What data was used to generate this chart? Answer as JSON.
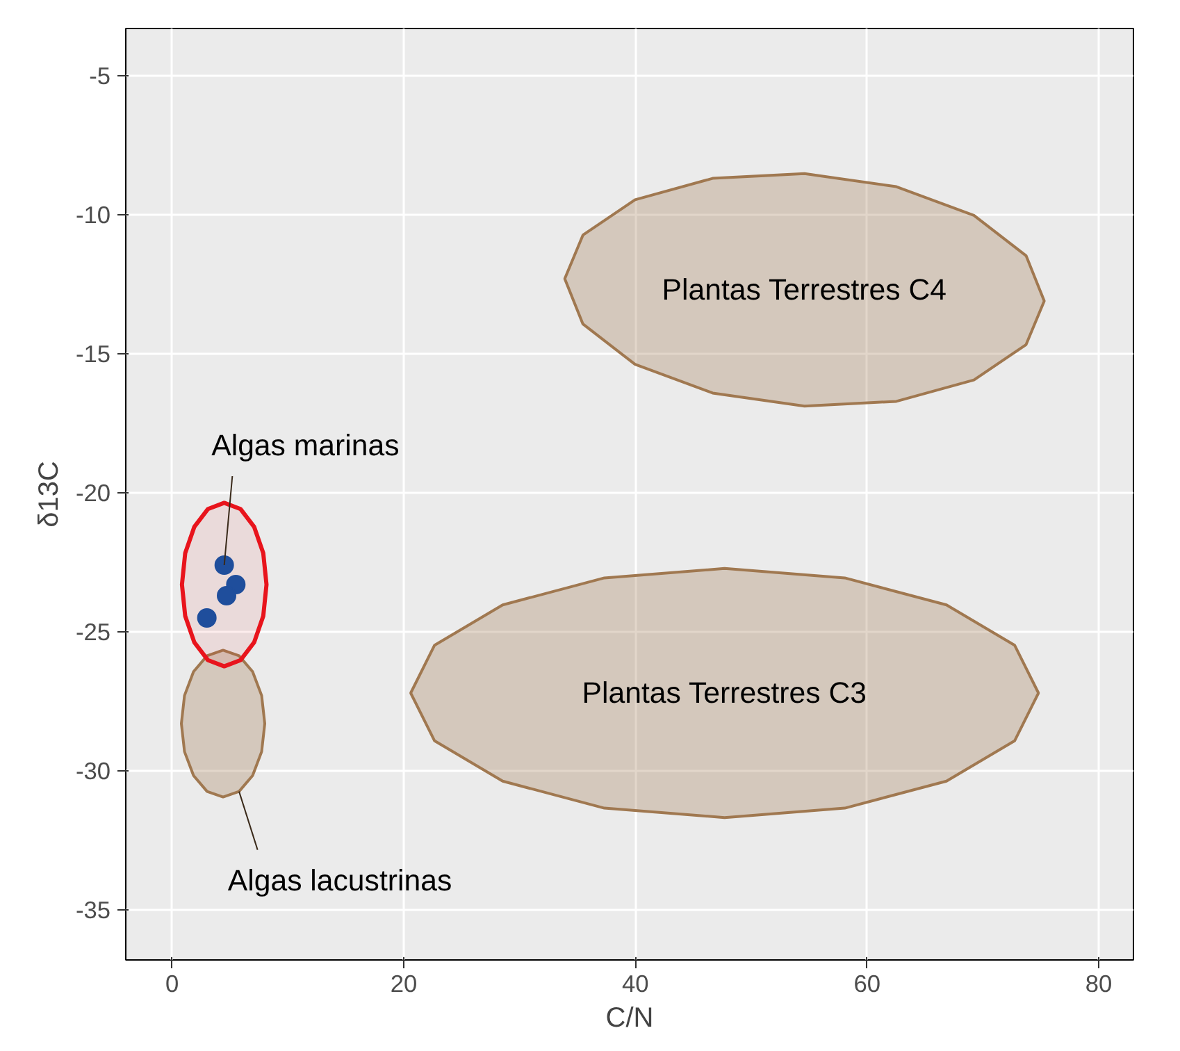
{
  "chart_data": {
    "type": "scatter",
    "xlabel": "C/N",
    "ylabel": "δ13C",
    "xlim": [
      -4,
      83
    ],
    "ylim": [
      -36.8,
      -3.3
    ],
    "xticks": [
      0,
      20,
      40,
      60,
      80
    ],
    "yticks": [
      -35,
      -30,
      -25,
      -20,
      -15,
      -10,
      -5
    ],
    "grid": true,
    "series": [
      {
        "type": "area",
        "color": "#a07850",
        "x": [
          75.3,
          73.73,
          69.23,
          62.53,
          54.6,
          46.67,
          39.97,
          35.47,
          33.9,
          35.47,
          39.97,
          46.67,
          54.6,
          62.53,
          69.23,
          73.73
        ],
        "values": [
          -13.1,
          -11.47,
          -10.02,
          -8.99,
          -8.52,
          -8.69,
          -9.46,
          -10.73,
          -12.3,
          -13.93,
          -15.38,
          -16.41,
          -16.88,
          -16.71,
          -15.94,
          -14.67
        ]
      },
      {
        "type": "area",
        "color": "#a07850",
        "x": [
          74.8,
          72.74,
          66.86,
          58.08,
          47.7,
          37.32,
          28.54,
          22.66,
          20.6,
          22.66,
          28.54,
          37.32,
          47.7,
          58.08,
          66.86,
          72.74
        ],
        "values": [
          -27.2,
          -25.48,
          -24.03,
          -23.06,
          -22.72,
          -23.06,
          -24.03,
          -25.48,
          -27.2,
          -28.92,
          -30.37,
          -31.34,
          -31.68,
          -31.34,
          -30.37,
          -28.92
        ]
      },
      {
        "type": "area",
        "color": "#a07850",
        "x": [
          8.0,
          7.73,
          6.95,
          5.78,
          4.4,
          3.02,
          1.85,
          1.07,
          0.8,
          1.07,
          1.85,
          3.02,
          4.4,
          5.78,
          6.95,
          7.73
        ],
        "values": [
          -28.3,
          -27.29,
          -26.43,
          -25.86,
          -25.66,
          -25.86,
          -26.43,
          -27.29,
          -28.3,
          -29.31,
          -30.17,
          -30.74,
          -30.94,
          -30.74,
          -30.17,
          -29.31
        ]
      },
      {
        "type": "area",
        "color": "#e8141c",
        "x": [
          8.15,
          7.87,
          7.08,
          5.9,
          4.5,
          3.1,
          1.92,
          1.13,
          0.85,
          1.13,
          1.92,
          3.1,
          4.5,
          5.9,
          7.08,
          7.87
        ],
        "values": [
          -23.3,
          -22.17,
          -21.22,
          -20.58,
          -20.36,
          -20.58,
          -21.22,
          -22.17,
          -23.3,
          -24.43,
          -25.38,
          -26.02,
          -26.24,
          -26.02,
          -25.38,
          -24.43
        ]
      },
      {
        "marker": "circle",
        "color": "#1f4e9c",
        "x": [
          4.5,
          5.5,
          4.7,
          3.0
        ],
        "values": [
          -22.6,
          -23.3,
          -23.7,
          -24.5
        ]
      }
    ],
    "annotations": [
      {
        "text": "Algas marinas",
        "x": 4.5,
        "y": -22.6
      },
      "Plantas Terrestres C4",
      "Plantas Terrestres C3",
      {
        "text": "Algas lacustrinas",
        "x": 5.78,
        "y": -30.74
      }
    ]
  }
}
